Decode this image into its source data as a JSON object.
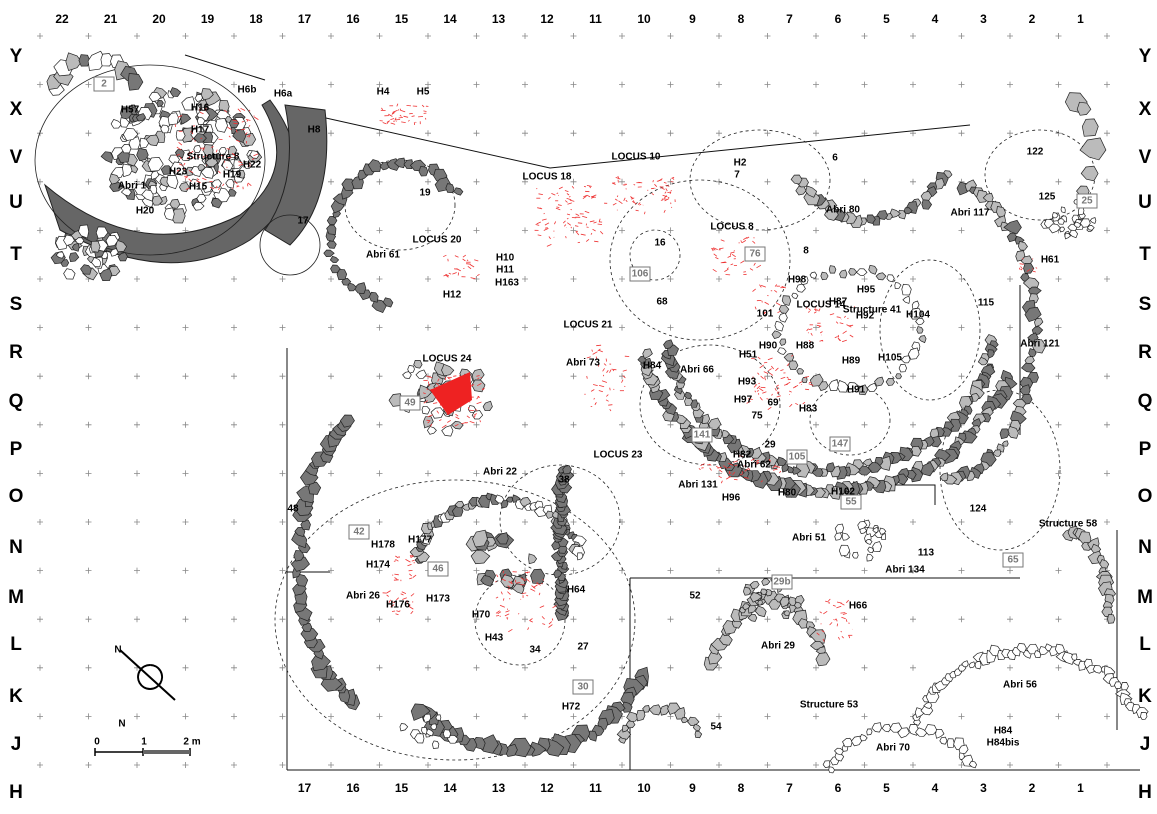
{
  "grid": {
    "columns_top": [
      "22",
      "21",
      "20",
      "19",
      "18",
      "17",
      "16",
      "15",
      "14",
      "13",
      "12",
      "11",
      "10",
      "9",
      "8",
      "7",
      "6",
      "5",
      "4",
      "3",
      "2",
      "1"
    ],
    "columns_bottom": [
      "17",
      "16",
      "15",
      "14",
      "13",
      "12",
      "11",
      "10",
      "9",
      "8",
      "7",
      "6",
      "5",
      "4",
      "3",
      "2",
      "1"
    ],
    "rows": [
      "Y",
      "X",
      "V",
      "U",
      "T",
      "S",
      "R",
      "Q",
      "P",
      "O",
      "N",
      "M",
      "L",
      "K",
      "J",
      "H"
    ]
  },
  "labels": [
    "H57",
    "H16",
    "H17",
    "Structure 8",
    "H22",
    "H19",
    "H23",
    "H15",
    "Abri 1",
    "H20",
    "H6b",
    "H6a",
    "H8",
    "H4",
    "H5",
    "LOCUS 10",
    "LOCUS 18",
    "H2",
    "7",
    "6",
    "122",
    "125",
    "Abri 80",
    "Abri 117",
    "19",
    "17",
    "LOCUS 20",
    "Abri 61",
    "H10",
    "H11",
    "H163",
    "H12",
    "16",
    "LOCUS 8",
    "8",
    "H61",
    "68",
    "H98",
    "H95",
    "H87",
    "LOCUS 14",
    "H92",
    "Structure 41",
    "H104",
    "115",
    "101",
    "LOCUS 21",
    "Abri 121",
    "H88",
    "H90",
    "H51",
    "H89",
    "H105",
    "Abri 73",
    "H84",
    "Abri 66",
    "LOCUS 24",
    "H93",
    "H91",
    "H97",
    "69",
    "H83",
    "75",
    "29",
    "H82",
    "LOCUS 23",
    "Abri 62",
    "Abri 131",
    "38",
    "H96",
    "H80",
    "H102",
    "124",
    "Abri 22",
    "48",
    "Structure 58",
    "H178",
    "H177",
    "Abri 51",
    "113",
    "H174",
    "Abri 134",
    "Abri 26",
    "H176",
    "H173",
    "H64",
    "52",
    "H66",
    "H70",
    "H43",
    "34",
    "27",
    "Abri 29",
    "Abri 56",
    "Structure 53",
    "H72",
    "54",
    "H84",
    "H84bis",
    "Abri 70"
  ],
  "boxed_labels": [
    "2",
    "25",
    "76",
    "106",
    "49",
    "141",
    "147",
    "105",
    "55",
    "42",
    "65",
    "46",
    "29b",
    "30"
  ],
  "scale": {
    "ticks": [
      "0",
      "1",
      "2 m"
    ],
    "north": "N"
  }
}
